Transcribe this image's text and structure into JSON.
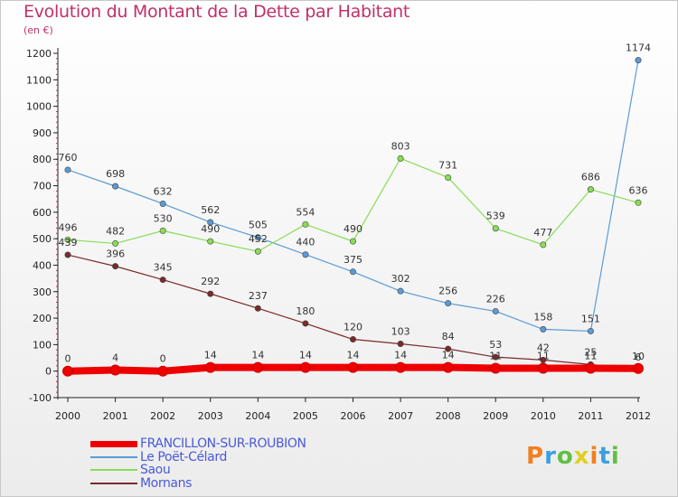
{
  "title": "Evolution du Montant de la Dette par Habitant",
  "unit": "(en €)",
  "logo": "Proxiti",
  "chart_data": {
    "type": "line",
    "x": [
      "2000",
      "2001",
      "2002",
      "2003",
      "2004",
      "2005",
      "2006",
      "2007",
      "2008",
      "2009",
      "2010",
      "2011",
      "2012"
    ],
    "ylim": [
      -100,
      1200
    ],
    "yticks": [
      -100,
      0,
      100,
      200,
      300,
      400,
      500,
      600,
      700,
      800,
      900,
      1000,
      1100,
      1200
    ],
    "grid": false,
    "legend": "bottom-left",
    "series": [
      {
        "name": "FRANCILLON-SUR-ROUBION",
        "color": "#ee0000",
        "values": [
          0,
          4,
          0,
          14,
          14,
          14,
          14,
          14,
          14,
          11,
          11,
          11,
          10
        ],
        "labels": [
          "0",
          "4",
          "0",
          "14",
          "14",
          "14",
          "14",
          "14",
          "14",
          "11",
          "11",
          "11",
          "10"
        ]
      },
      {
        "name": "Le Poët-Célard",
        "color": "#5b9bd5",
        "values": [
          760,
          698,
          632,
          562,
          505,
          440,
          375,
          302,
          256,
          226,
          158,
          151,
          1174
        ],
        "labels": [
          "760",
          "698",
          "632",
          "562",
          "505",
          "440",
          "375",
          "302",
          "256",
          "226",
          "158",
          "151",
          "1174"
        ]
      },
      {
        "name": "Saou",
        "color": "#88dd55",
        "values": [
          496,
          482,
          530,
          490,
          452,
          554,
          490,
          803,
          731,
          539,
          477,
          686,
          636
        ],
        "labels": [
          "496",
          "482",
          "530",
          "490",
          "452",
          "554",
          "490",
          "803",
          "731",
          "539",
          "477",
          "686",
          "636"
        ]
      },
      {
        "name": "Mornans",
        "color": "#7a2a2a",
        "values": [
          439,
          396,
          345,
          292,
          237,
          180,
          120,
          103,
          84,
          53,
          42,
          25,
          6
        ],
        "labels": [
          "439",
          "396",
          "345",
          "292",
          "237",
          "180",
          "120",
          "103",
          "84",
          "53",
          "42",
          "25",
          "6"
        ]
      }
    ]
  }
}
